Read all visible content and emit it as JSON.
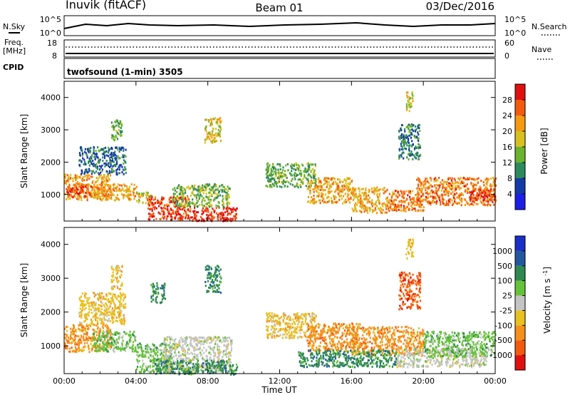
{
  "header": {
    "station": "Inuvik (fitACF)",
    "beam": "Beam 01",
    "date": "03/Dec/2016"
  },
  "strips": {
    "nsky": {
      "left_label": "N.Sky",
      "left_ticks": [
        "10^5",
        "10^0"
      ],
      "right_ticks": [
        "10^5",
        "10^0"
      ],
      "right_label": "N.Search"
    },
    "freq": {
      "left_label_1": "Freq.",
      "left_label_2": "[MHz]",
      "left_ticks": [
        "18",
        "8"
      ],
      "right_ticks": [
        "60",
        "0"
      ],
      "right_label": "Nave"
    },
    "cpid": {
      "label": "CPID",
      "text": "twofsound (1-min) 3505"
    }
  },
  "colors": {
    "power": [
      "#1e1ee6",
      "#143aa8",
      "#2d8a5c",
      "#6ab32e",
      "#d8c020",
      "#f59a10",
      "#f25a10",
      "#e01010"
    ],
    "velocity": [
      "#e01010",
      "#f25a10",
      "#f5901a",
      "#e8c020",
      "#c4c4c4",
      "#66c23a",
      "#2e8a50",
      "#2258a0",
      "#1a2ec8"
    ]
  },
  "chart_data": [
    {
      "type": "heatmap",
      "name": "power",
      "ylabel": "Slant Range [km]",
      "xlabel": "",
      "x_ticks": [
        "00:00",
        "04:00",
        "08:00",
        "12:00",
        "16:00",
        "20:00",
        "00:00"
      ],
      "xlim_hours": [
        0,
        24
      ],
      "y_ticks": [
        1000,
        2000,
        3000,
        4000
      ],
      "ylim": [
        180,
        4500
      ],
      "colorbar": {
        "label": "Power [dB]",
        "ticks": [
          4,
          8,
          12,
          16,
          20,
          24,
          28
        ],
        "range": [
          0,
          32
        ]
      },
      "bands": [
        {
          "h0": 0.0,
          "h1": 2.6,
          "r0": 850,
          "r1": 1650,
          "v": 22
        },
        {
          "h0": 0.1,
          "h1": 1.5,
          "r0": 950,
          "r1": 1350,
          "v": 27
        },
        {
          "h0": 1.6,
          "h1": 4.0,
          "r0": 850,
          "r1": 1350,
          "v": 21
        },
        {
          "h0": 4.0,
          "h1": 4.9,
          "r0": 750,
          "r1": 1100,
          "v": 18
        },
        {
          "h0": 4.6,
          "h1": 7.0,
          "r0": 250,
          "r1": 950,
          "v": 28
        },
        {
          "h0": 7.0,
          "h1": 9.6,
          "r0": 200,
          "r1": 650,
          "v": 29
        },
        {
          "h0": 6.0,
          "h1": 9.2,
          "r0": 650,
          "r1": 1350,
          "v": 14
        },
        {
          "h0": 0.8,
          "h1": 3.4,
          "r0": 1650,
          "r1": 2500,
          "v": 8
        },
        {
          "h0": 2.6,
          "h1": 3.2,
          "r0": 2700,
          "r1": 3350,
          "v": 13
        },
        {
          "h0": 7.8,
          "h1": 8.7,
          "r0": 2600,
          "r1": 3400,
          "v": 18
        },
        {
          "h0": 11.2,
          "h1": 14.0,
          "r0": 1250,
          "r1": 2000,
          "v": 13
        },
        {
          "h0": 13.5,
          "h1": 16.0,
          "r0": 750,
          "r1": 1550,
          "v": 21
        },
        {
          "h0": 16.0,
          "h1": 18.0,
          "r0": 450,
          "r1": 1250,
          "v": 21
        },
        {
          "h0": 18.0,
          "h1": 20.0,
          "r0": 500,
          "r1": 1150,
          "v": 24
        },
        {
          "h0": 19.6,
          "h1": 24.0,
          "r0": 700,
          "r1": 1550,
          "v": 24
        },
        {
          "h0": 22.5,
          "h1": 24.0,
          "r0": 850,
          "r1": 1200,
          "v": 28
        },
        {
          "h0": 18.6,
          "h1": 19.8,
          "r0": 2100,
          "r1": 3200,
          "v": 9
        },
        {
          "h0": 19.0,
          "h1": 19.4,
          "r0": 3600,
          "r1": 4200,
          "v": 18
        }
      ]
    },
    {
      "type": "heatmap",
      "name": "velocity",
      "ylabel": "Slant Range [km]",
      "xlabel": "Time UT",
      "x_ticks": [
        "00:00",
        "04:00",
        "08:00",
        "12:00",
        "16:00",
        "20:00",
        "00:00"
      ],
      "xlim_hours": [
        0,
        24
      ],
      "y_ticks": [
        1000,
        2000,
        3000,
        4000
      ],
      "ylim": [
        180,
        4500
      ],
      "colorbar": {
        "label": "Velocity [m s^-1]",
        "ticks": [
          "1000",
          "500",
          "100",
          "25",
          "-25",
          "-100",
          "-500",
          "-1000"
        ]
      },
      "bands": [
        {
          "h0": 0.0,
          "h1": 2.6,
          "r0": 850,
          "r1": 1650,
          "v": 2
        },
        {
          "h0": 1.6,
          "h1": 4.0,
          "r0": 850,
          "r1": 1450,
          "v": 5
        },
        {
          "h0": 0.8,
          "h1": 3.4,
          "r0": 1650,
          "r1": 2600,
          "v": 3
        },
        {
          "h0": 2.6,
          "h1": 3.2,
          "r0": 2700,
          "r1": 3400,
          "v": 3
        },
        {
          "h0": 4.0,
          "h1": 6.0,
          "r0": 250,
          "r1": 1100,
          "v": 5
        },
        {
          "h0": 5.5,
          "h1": 9.3,
          "r0": 250,
          "r1": 1300,
          "v": 4
        },
        {
          "h0": 5.0,
          "h1": 9.6,
          "r0": 180,
          "r1": 600,
          "v": 6
        },
        {
          "h0": 7.8,
          "h1": 8.7,
          "r0": 2600,
          "r1": 3400,
          "v": 6
        },
        {
          "h0": 4.8,
          "h1": 5.6,
          "r0": 2300,
          "r1": 2900,
          "v": 6
        },
        {
          "h0": 11.2,
          "h1": 14.0,
          "r0": 1250,
          "r1": 2000,
          "v": 3
        },
        {
          "h0": 13.5,
          "h1": 16.5,
          "r0": 850,
          "r1": 1700,
          "v": 2
        },
        {
          "h0": 16.0,
          "h1": 20.0,
          "r0": 750,
          "r1": 1600,
          "v": 2
        },
        {
          "h0": 13.0,
          "h1": 18.5,
          "r0": 400,
          "r1": 900,
          "v": 6
        },
        {
          "h0": 18.5,
          "h1": 23.5,
          "r0": 400,
          "r1": 950,
          "v": 4
        },
        {
          "h0": 20.0,
          "h1": 24.0,
          "r0": 700,
          "r1": 1450,
          "v": 5
        },
        {
          "h0": 18.6,
          "h1": 19.8,
          "r0": 2100,
          "r1": 3200,
          "v": 1
        },
        {
          "h0": 19.0,
          "h1": 19.4,
          "r0": 3600,
          "r1": 4200,
          "v": 3
        }
      ]
    }
  ]
}
